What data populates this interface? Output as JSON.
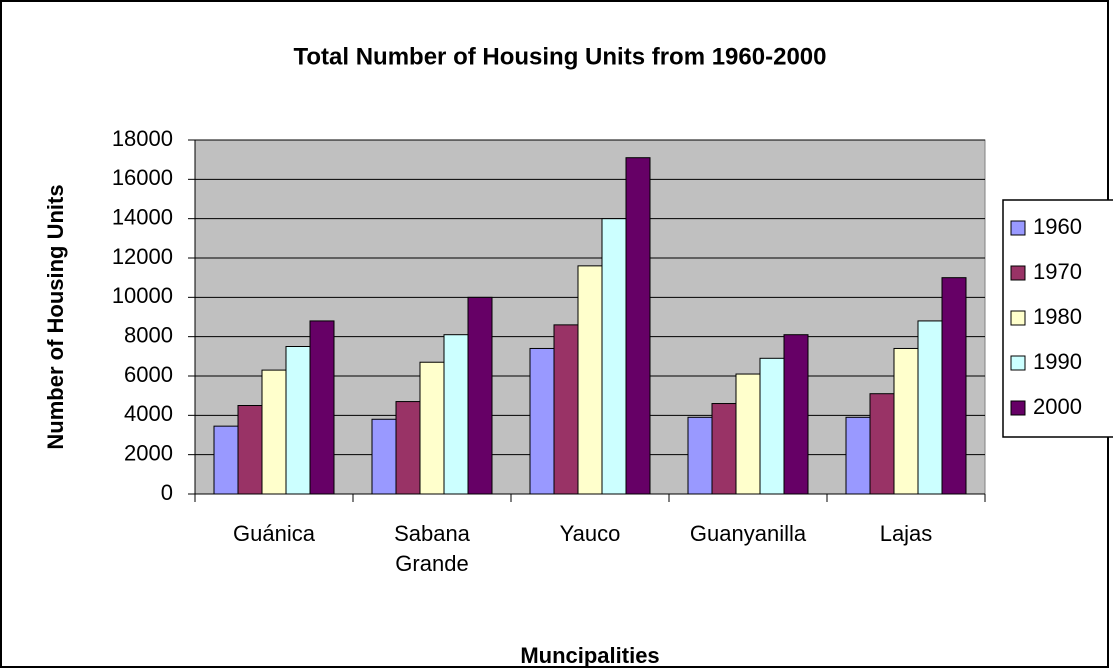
{
  "chart_data": {
    "type": "bar",
    "title": "Total Number of Housing Units from 1960-2000",
    "x_label": "Muncipalities",
    "y_label": "Number of Housing Units",
    "categories": [
      "Guánica",
      "Sabana Grande",
      "Yauco",
      "Guanyanilla",
      "Lajas"
    ],
    "series": [
      {
        "name": "1960",
        "color": "#9999ff",
        "values": [
          3450,
          3800,
          7400,
          3900,
          3900
        ]
      },
      {
        "name": "1970",
        "color": "#993366",
        "values": [
          4500,
          4700,
          8600,
          4600,
          5100
        ]
      },
      {
        "name": "1980",
        "color": "#ffffcc",
        "values": [
          6300,
          6700,
          11600,
          6100,
          7400
        ]
      },
      {
        "name": "1990",
        "color": "#ccffff",
        "values": [
          7500,
          8100,
          14000,
          6900,
          8800
        ]
      },
      {
        "name": "2000",
        "color": "#660066",
        "values": [
          8800,
          10000,
          17100,
          8100,
          11000
        ]
      }
    ],
    "ylim": [
      0,
      18000
    ],
    "yticks": [
      0,
      2000,
      4000,
      6000,
      8000,
      10000,
      12000,
      14000,
      16000,
      18000
    ],
    "grid": true,
    "legend": "right"
  }
}
